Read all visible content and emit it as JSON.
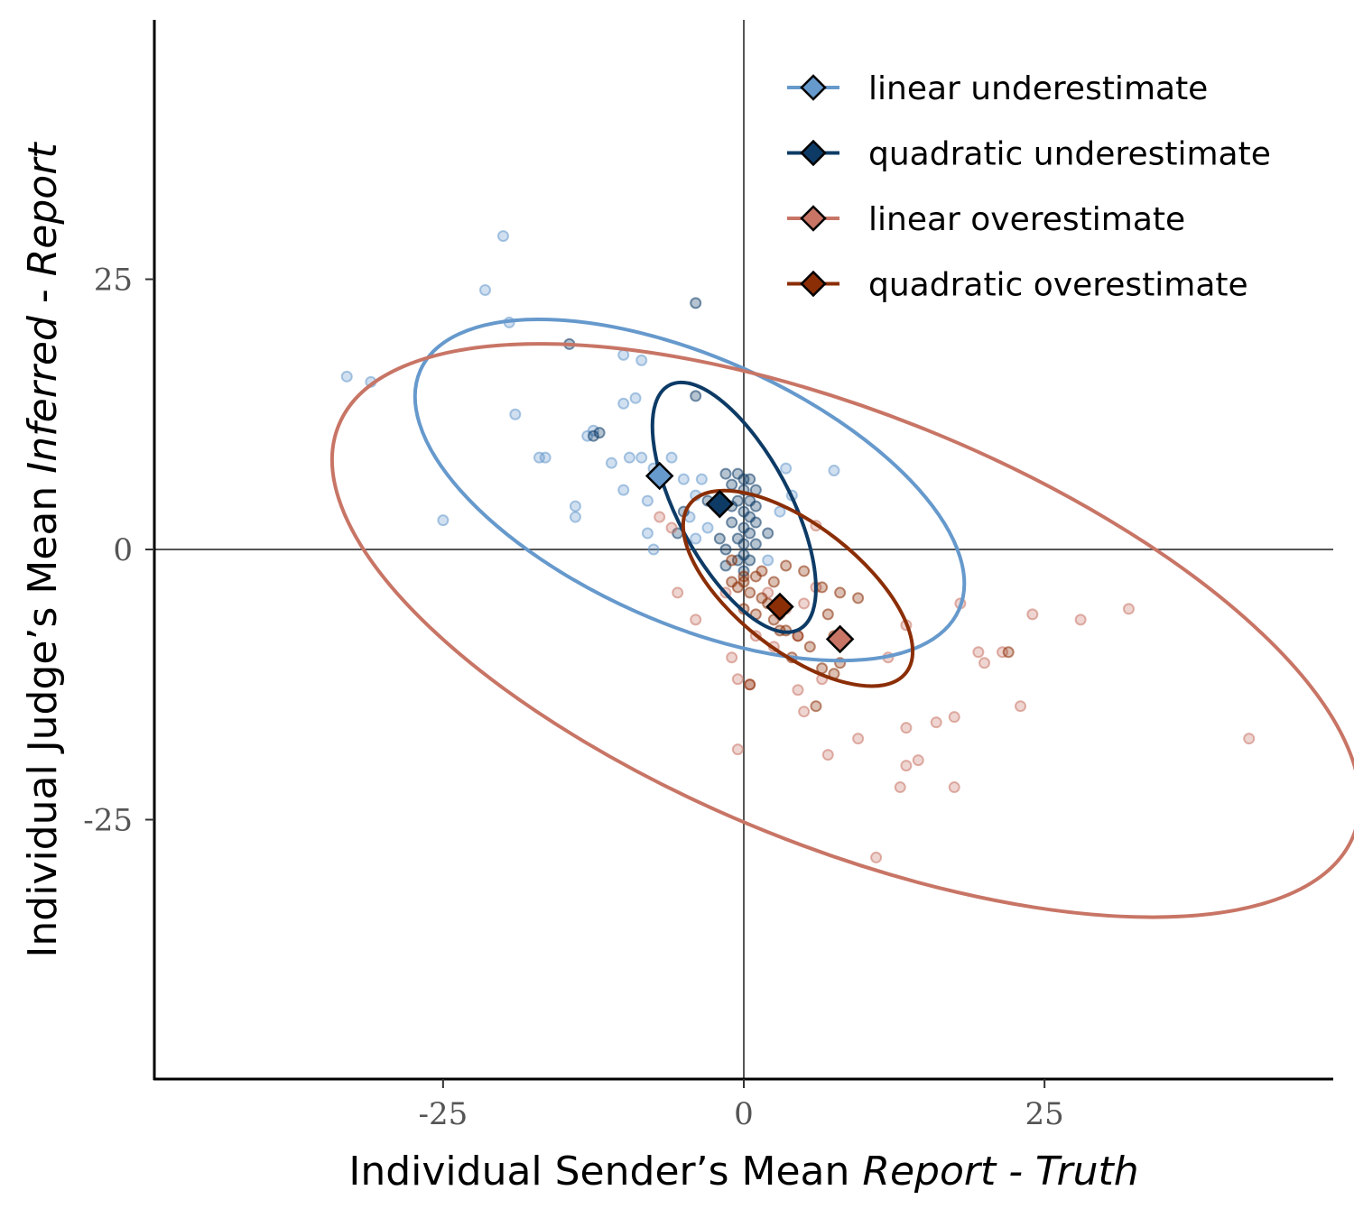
{
  "chart_data": {
    "type": "scatter",
    "xlabel": {
      "prefix": "Individual Sender’s Mean ",
      "italic": "Report - Truth"
    },
    "ylabel": {
      "prefix": "Individual Judge’s Mean ",
      "italic_a": "Inferred",
      "middle": " - ",
      "italic_b": "Report"
    },
    "xlim": [
      -49,
      49
    ],
    "ylim": [
      -49,
      49
    ],
    "x_ticks": [
      -25,
      0,
      25
    ],
    "y_ticks": [
      -25,
      0,
      25
    ],
    "x_tick_labels": [
      "-25",
      "0",
      "25"
    ],
    "y_tick_labels": [
      "-25",
      "0",
      "25"
    ],
    "reference_lines": {
      "x": 0,
      "y": 0
    },
    "legend_position": "top-right",
    "series": [
      {
        "name": "linear underestimate",
        "color": "#6699CC",
        "mean": [
          -7,
          6.8
        ],
        "ellipse": {
          "center": [
            -4.5,
            5.5
          ],
          "rx": 24.5,
          "ry": 12.3,
          "angle_deg": 24
        },
        "points": [
          [
            -20,
            29
          ],
          [
            -21.5,
            24
          ],
          [
            -19.5,
            21
          ],
          [
            -33,
            16
          ],
          [
            -31,
            15.5
          ],
          [
            -19,
            12.5
          ],
          [
            -10,
            18
          ],
          [
            -8.5,
            17.5
          ],
          [
            -9,
            14
          ],
          [
            -10,
            13.5
          ],
          [
            -17,
            8.5
          ],
          [
            -16.5,
            8.5
          ],
          [
            -14,
            4
          ],
          [
            -14,
            3
          ],
          [
            -10,
            5.5
          ],
          [
            -9.5,
            8.5
          ],
          [
            -8.5,
            8.5
          ],
          [
            -7.5,
            7.5
          ],
          [
            -8,
            4.5
          ],
          [
            -8,
            1.5
          ],
          [
            -7.5,
            0
          ],
          [
            -5,
            6.5
          ],
          [
            -4,
            5
          ],
          [
            -4.5,
            3
          ],
          [
            -3.5,
            6.5
          ],
          [
            -3,
            2
          ],
          [
            -4,
            1
          ],
          [
            -25,
            2.7
          ],
          [
            -13,
            10.5
          ],
          [
            -12.5,
            11
          ],
          [
            -6,
            8.5
          ],
          [
            -11,
            8
          ],
          [
            2,
            -1
          ],
          [
            3,
            3.5
          ],
          [
            4,
            5
          ],
          [
            7.5,
            7.3
          ],
          [
            3.5,
            7.5
          ]
        ]
      },
      {
        "name": "quadratic underestimate",
        "color": "#0D3B66",
        "mean": [
          -2,
          4.2
        ],
        "ellipse": {
          "center": [
            -0.8,
            3.9
          ],
          "rx": 11.5,
          "ry": 5.2,
          "angle_deg": 62
        },
        "points": [
          [
            -14.5,
            19
          ],
          [
            -4,
            22.8
          ],
          [
            -4,
            14.2
          ],
          [
            -12.5,
            10.5
          ],
          [
            -12,
            10.8
          ],
          [
            -1.5,
            7
          ],
          [
            -0.5,
            7
          ],
          [
            0,
            6.5
          ],
          [
            0.5,
            6.5
          ],
          [
            -1,
            6
          ],
          [
            0,
            5.5
          ],
          [
            1,
            5.5
          ],
          [
            -0.5,
            4.5
          ],
          [
            0.5,
            4.5
          ],
          [
            -1,
            4
          ],
          [
            0,
            3.5
          ],
          [
            0.5,
            3
          ],
          [
            1,
            2.5
          ],
          [
            -1,
            2.5
          ],
          [
            0,
            2
          ],
          [
            0.5,
            1.5
          ],
          [
            -0.5,
            1
          ],
          [
            0,
            0.5
          ],
          [
            1,
            0.5
          ],
          [
            -1.5,
            0
          ],
          [
            0,
            -0.5
          ],
          [
            -0.5,
            -1
          ],
          [
            0.5,
            -1
          ],
          [
            -1.5,
            -1.5
          ],
          [
            0,
            -2
          ],
          [
            -3,
            4.5
          ],
          [
            -5,
            3.5
          ],
          [
            -5.5,
            1.5
          ],
          [
            -2,
            1
          ],
          [
            2,
            1.5
          ],
          [
            1,
            4
          ]
        ]
      },
      {
        "name": "linear overestimate",
        "color": "#C87566",
        "mean": [
          8,
          -8.3
        ],
        "ellipse": {
          "center": [
            8.5,
            -7.5
          ],
          "rx": 45.5,
          "ry": 20,
          "angle_deg": 22
        },
        "points": [
          [
            42,
            -17.5
          ],
          [
            32,
            -5.5
          ],
          [
            28,
            -6.5
          ],
          [
            24,
            -6
          ],
          [
            23,
            -14.5
          ],
          [
            21.5,
            -9.5
          ],
          [
            20,
            -10.5
          ],
          [
            19.5,
            -9.5
          ],
          [
            18,
            -5
          ],
          [
            17.5,
            -15.5
          ],
          [
            17.5,
            -22
          ],
          [
            16,
            -16
          ],
          [
            14.5,
            -19.5
          ],
          [
            13.5,
            -16.5
          ],
          [
            13.5,
            -20
          ],
          [
            13,
            -22
          ],
          [
            13.5,
            -7
          ],
          [
            12,
            -10
          ],
          [
            11,
            -28.5
          ],
          [
            9.5,
            -17.5
          ],
          [
            7,
            -19
          ],
          [
            6.5,
            -12
          ],
          [
            5,
            -5
          ],
          [
            6,
            -3.5
          ],
          [
            5,
            -15
          ],
          [
            4.5,
            -8
          ],
          [
            3,
            -6
          ],
          [
            2,
            -4
          ],
          [
            0.5,
            -12.5
          ],
          [
            -0.5,
            -12
          ],
          [
            -1,
            -10
          ],
          [
            -0.5,
            -18.5
          ],
          [
            -4,
            -6.5
          ],
          [
            -5.5,
            -4
          ],
          [
            -6,
            2
          ],
          [
            -7,
            3
          ],
          [
            -1.5,
            -4
          ],
          [
            4.5,
            -13
          ],
          [
            2.5,
            -9
          ],
          [
            1,
            -8
          ],
          [
            3.5,
            -5.5
          ],
          [
            6,
            2.2
          ]
        ]
      },
      {
        "name": "quadratic overestimate",
        "color": "#8B2E06",
        "mean": [
          3,
          -5.3
        ],
        "ellipse": {
          "center": [
            4.5,
            -3.6
          ],
          "rx": 11.4,
          "ry": 5.8,
          "angle_deg": 38
        },
        "points": [
          [
            0,
            -2.5
          ],
          [
            1,
            -2.5
          ],
          [
            0,
            -3
          ],
          [
            -0.5,
            -3.5
          ],
          [
            0.5,
            -4
          ],
          [
            1.5,
            -4.5
          ],
          [
            2,
            -5
          ],
          [
            0,
            -5.5
          ],
          [
            1,
            -6
          ],
          [
            2.5,
            -6.5
          ],
          [
            3.5,
            -7.5
          ],
          [
            4.5,
            -8
          ],
          [
            5.5,
            -9
          ],
          [
            6.5,
            -11
          ],
          [
            7.5,
            -11.5
          ],
          [
            8,
            -10.5
          ],
          [
            6,
            -14.5
          ],
          [
            7.5,
            -8
          ],
          [
            7,
            -6
          ],
          [
            9.5,
            -4.5
          ],
          [
            8,
            -4
          ],
          [
            6.5,
            -3.5
          ],
          [
            5,
            -2
          ],
          [
            2.5,
            -3
          ],
          [
            -1,
            -3
          ],
          [
            0.5,
            -12.5
          ],
          [
            22,
            -9.5
          ],
          [
            4,
            -10
          ],
          [
            3,
            -7.5
          ],
          [
            -1,
            -1
          ],
          [
            1.5,
            -2
          ],
          [
            3.5,
            -1.5
          ]
        ]
      }
    ]
  }
}
